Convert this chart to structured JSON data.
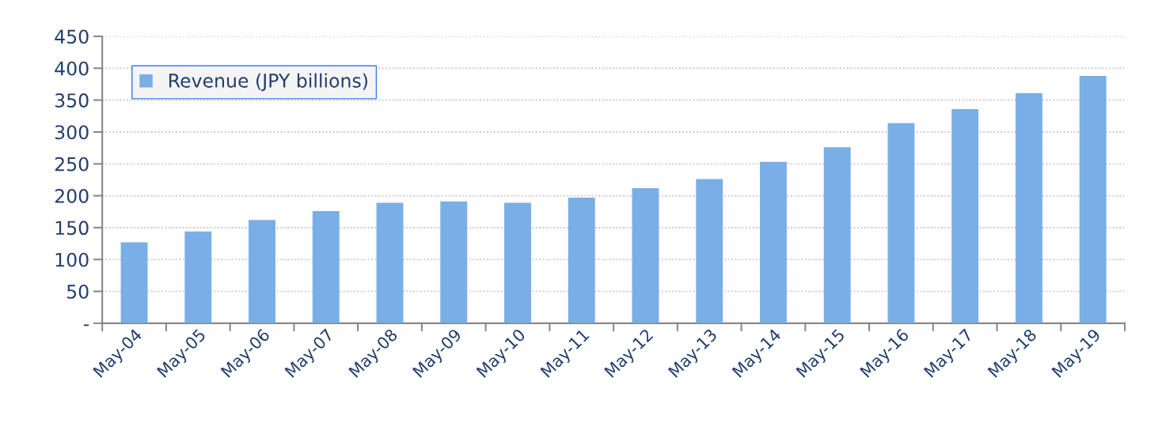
{
  "chart_data": {
    "type": "bar",
    "categories": [
      "May-04",
      "May-05",
      "May-06",
      "May-07",
      "May-08",
      "May-09",
      "May-10",
      "May-11",
      "May-12",
      "May-13",
      "May-14",
      "May-15",
      "May-16",
      "May-17",
      "May-18",
      "May-19"
    ],
    "series": [
      {
        "name": "Revenue (JPY billions)",
        "color": "#7aaee6",
        "values": [
          127,
          144,
          162,
          176,
          189,
          191,
          189,
          197,
          212,
          226,
          253,
          276,
          314,
          336,
          361,
          388
        ]
      }
    ],
    "ylim": [
      0,
      450
    ],
    "yticks": [
      {
        "value": 0,
        "label": "-"
      },
      50,
      100,
      150,
      200,
      250,
      300,
      350,
      400,
      450
    ],
    "grid": "y",
    "legend": "top left"
  }
}
